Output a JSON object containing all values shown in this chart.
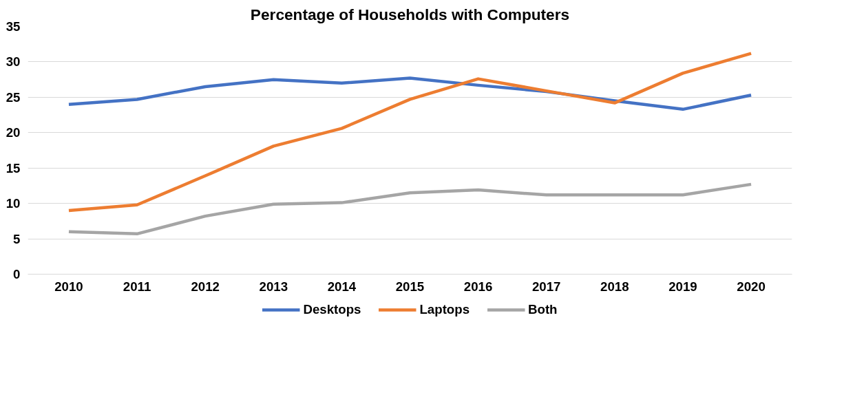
{
  "chart_data": {
    "type": "line",
    "title": "Percentage of Households with Computers",
    "categories": [
      "2010",
      "2011",
      "2012",
      "2013",
      "2014",
      "2015",
      "2016",
      "2017",
      "2018",
      "2019",
      "2020"
    ],
    "series": [
      {
        "name": "Desktops",
        "color": "#4472c4",
        "values": [
          24.0,
          24.7,
          26.5,
          27.5,
          27.0,
          27.7,
          26.7,
          25.8,
          24.5,
          23.3,
          25.3
        ]
      },
      {
        "name": "Laptops",
        "color": "#ed7d31",
        "values": [
          9.0,
          9.8,
          13.9,
          18.1,
          20.6,
          24.7,
          27.6,
          25.9,
          24.2,
          28.4,
          31.2
        ]
      },
      {
        "name": "Both",
        "color": "#a5a5a5",
        "values": [
          6.0,
          5.7,
          8.2,
          9.9,
          10.1,
          11.5,
          11.9,
          11.2,
          11.2,
          11.2,
          12.7
        ]
      }
    ],
    "ylim": [
      0,
      35
    ],
    "yticks": [
      0,
      5,
      10,
      15,
      20,
      25,
      30,
      35
    ],
    "grid": "y",
    "legend": "bottom",
    "marker": "none",
    "line_style": "solid"
  }
}
